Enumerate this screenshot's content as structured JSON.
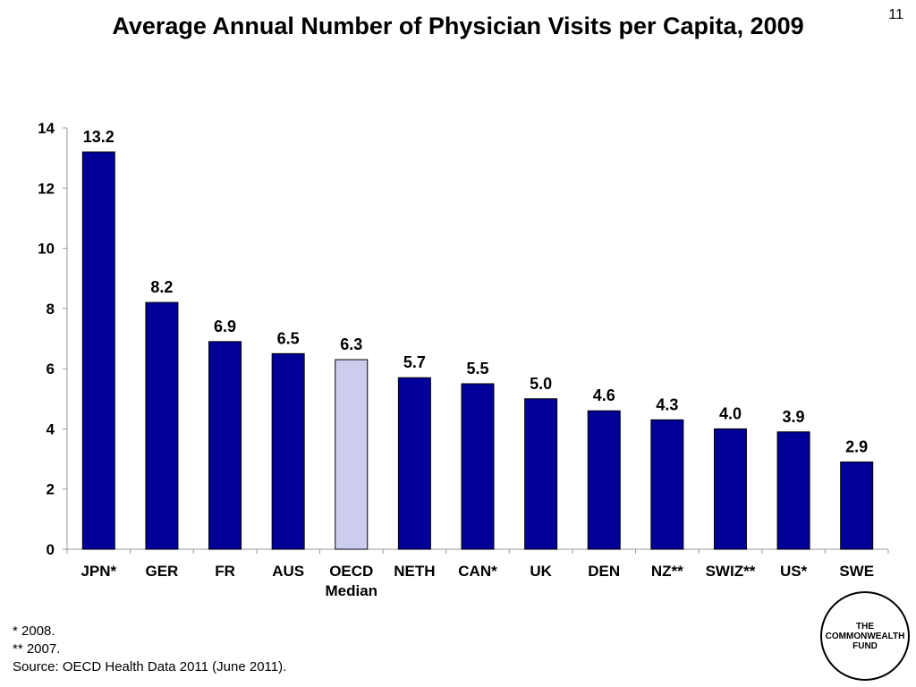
{
  "title": "Average Annual Number of Physician Visits per Capita, 2009",
  "page_number": "11",
  "chart_data": {
    "type": "bar",
    "title": "Average Annual Number of Physician Visits per Capita, 2009",
    "xlabel": "",
    "ylabel": "",
    "ylim": [
      0,
      14
    ],
    "yticks": [
      0,
      2,
      4,
      6,
      8,
      10,
      12,
      14
    ],
    "categories": [
      "JPN*",
      "GER",
      "FR",
      "AUS",
      "OECD Median",
      "NETH",
      "CAN*",
      "UK",
      "DEN",
      "NZ**",
      "SWIZ**",
      "US*",
      "SWE"
    ],
    "values": [
      13.2,
      8.2,
      6.9,
      6.5,
      6.3,
      5.7,
      5.5,
      5.0,
      4.6,
      4.3,
      4.0,
      3.9,
      2.9
    ],
    "value_labels": [
      "13.2",
      "8.2",
      "6.9",
      "6.5",
      "6.3",
      "5.7",
      "5.5",
      "5.0",
      "4.6",
      "4.3",
      "4.0",
      "3.9",
      "2.9"
    ],
    "colors": {
      "default": "#000099",
      "highlight": "#CCCCEE"
    },
    "highlight_index": 4,
    "grid": false,
    "legend": "none"
  },
  "footnotes": [
    "* 2008.",
    "** 2007.",
    "Source: OECD Health Data 2011 (June 2011)."
  ],
  "logo_text": [
    "THE",
    "COMMONWEALTH",
    "FUND"
  ]
}
